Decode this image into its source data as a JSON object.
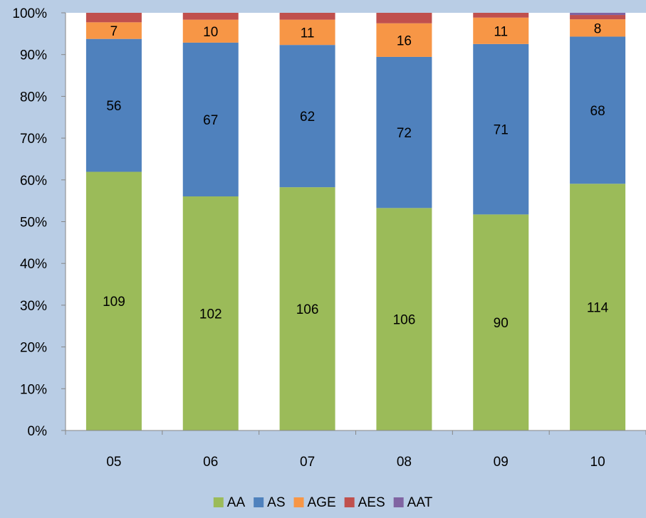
{
  "chart_data": {
    "type": "bar",
    "stacked": "percent",
    "categories": [
      "05",
      "06",
      "07",
      "08",
      "09",
      "10"
    ],
    "series": [
      {
        "name": "AA",
        "color": "#9bbb59",
        "values": [
          109,
          102,
          106,
          106,
          90,
          114
        ]
      },
      {
        "name": "AS",
        "color": "#4f81bd",
        "values": [
          56,
          67,
          62,
          72,
          71,
          68
        ]
      },
      {
        "name": "AGE",
        "color": "#f79646",
        "values": [
          7,
          10,
          11,
          16,
          11,
          8
        ]
      },
      {
        "name": "AES",
        "color": "#c0504d",
        "values": [
          4,
          3,
          3,
          5,
          2,
          2
        ]
      },
      {
        "name": "AAT",
        "color": "#8064a2",
        "values": [
          0,
          0,
          0,
          0,
          0,
          1
        ]
      }
    ],
    "labeled_series": [
      "AA",
      "AS",
      "AGE"
    ],
    "y_ticks": [
      "0%",
      "10%",
      "20%",
      "30%",
      "40%",
      "50%",
      "60%",
      "70%",
      "80%",
      "90%",
      "100%"
    ],
    "ylim": [
      0,
      100
    ],
    "grid": false,
    "legend": "bottom",
    "plot_background": "#ffffff",
    "chart_background": "#b9cde5"
  }
}
